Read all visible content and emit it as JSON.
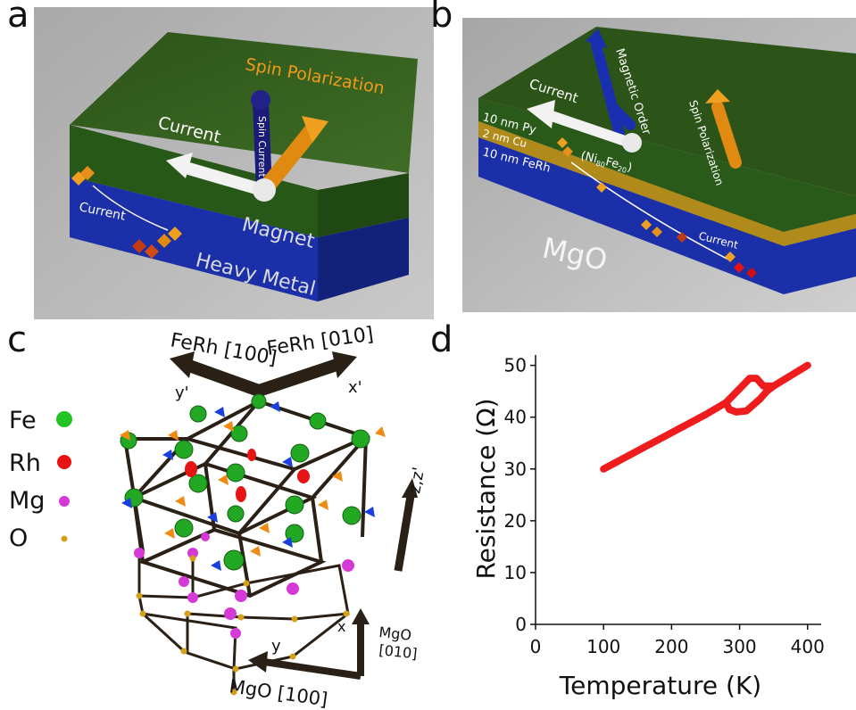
{
  "panels": {
    "a": {
      "letter": "a",
      "labels": {
        "spin_polarization": "Spin Polarization",
        "current": "Current",
        "spin_current": "Spin Current",
        "current_bottom": "Current",
        "magnet": "Magnet",
        "heavy_metal": "Heavy Metal"
      },
      "colors": {
        "magnet_layer": "#2e5e1e",
        "heavy_metal_layer": "#1a2fa8",
        "substrate": "#b9b9b9"
      }
    },
    "b": {
      "letter": "b",
      "labels": {
        "current": "Current",
        "magnetic_order": "Magnetic Order",
        "spin_polarization": "Spin Polarization",
        "layer_py": "10 nm Py",
        "layer_cu": "2  nm Cu",
        "layer_ferh": "10 nm FeRh",
        "py_composition": "(Ni",
        "py_ni_sub": "80",
        "py_fe": "Fe",
        "py_fe_sub": "20",
        "py_close": ")",
        "current_bottom": "Current",
        "substrate": "MgO"
      },
      "colors": {
        "py_layer": "#2e5e1e",
        "cu_layer": "#b08a1a",
        "ferh_layer": "#1a2fa8",
        "substrate": "#b9b9b9"
      }
    },
    "c": {
      "letter": "c",
      "labels": {
        "ferh_100": "FeRh [100]",
        "ferh_010": "FeRh [010]",
        "y_prime": "y'",
        "x_prime": "x'",
        "z_axis": "z,z'",
        "mgo_010_a": "MgO",
        "mgo_010_b": "[010]",
        "x": "x",
        "y": "y",
        "mgo_100": "MgO  [100]"
      },
      "legend": [
        {
          "label": "Fe",
          "color": "#22c322"
        },
        {
          "label": "Rh",
          "color": "#e81414"
        },
        {
          "label": "Mg",
          "color": "#d63ad6"
        },
        {
          "label": "O",
          "color": "#d4a017"
        }
      ]
    },
    "d": {
      "letter": "d",
      "chart_data": {
        "type": "line",
        "xlabel": "Temperature (K)",
        "ylabel": "Resistance (Ω)",
        "xlim": [
          0,
          420
        ],
        "ylim": [
          0,
          52
        ],
        "xticks": [
          "0",
          "100",
          "200",
          "300",
          "400"
        ],
        "yticks": [
          "0",
          "10",
          "20",
          "30",
          "40",
          "50"
        ],
        "line_color": "#ee1c1c",
        "series": [
          {
            "x": [
              100,
              150,
              200,
              250,
              280,
              300,
              315,
              325,
              335,
              350,
              375,
              400
            ],
            "y": [
              30.0,
              33.5,
              37.0,
              40.5,
              42.8,
              45.5,
              47.5,
              47.5,
              46.0,
              46.0,
              48.0,
              50.0
            ]
          },
          {
            "x": [
              280,
              285,
              295,
              310,
              330,
              340,
              350
            ],
            "y": [
              42.8,
              41.5,
              41.0,
              41.2,
              43.5,
              45.0,
              46.0
            ]
          }
        ]
      }
    }
  }
}
